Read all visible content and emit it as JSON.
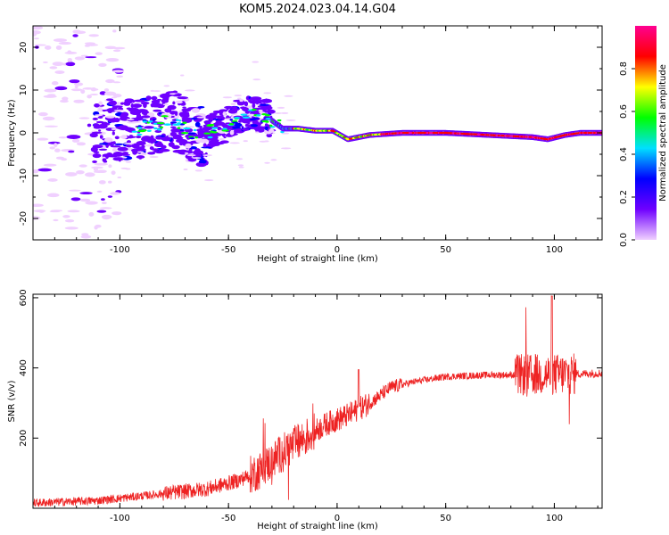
{
  "figure": {
    "title": "KOM5.2024.023.04.14.G04"
  },
  "chart_data": [
    {
      "type": "heatmap",
      "xlabel": "Height of straight line (km)",
      "ylabel": "Frequency (Hz)",
      "xlim": [
        -140,
        122
      ],
      "ylim": [
        -25,
        25
      ],
      "xticks": [
        -100,
        -50,
        0,
        50,
        100
      ],
      "yticks": [
        -20,
        -10,
        0,
        10,
        20
      ],
      "ridge": [
        {
          "x": -110,
          "y": 0
        },
        {
          "x": -90,
          "y": 1
        },
        {
          "x": -75,
          "y": 3
        },
        {
          "x": -65,
          "y": -1
        },
        {
          "x": -55,
          "y": 1
        },
        {
          "x": -40,
          "y": 5
        },
        {
          "x": -33,
          "y": 4
        },
        {
          "x": -25,
          "y": 1
        },
        {
          "x": -18,
          "y": 1
        },
        {
          "x": -10,
          "y": 0.5
        },
        {
          "x": -2,
          "y": 0.5
        },
        {
          "x": 5,
          "y": -1.5
        },
        {
          "x": 15,
          "y": -0.5
        },
        {
          "x": 30,
          "y": 0
        },
        {
          "x": 50,
          "y": 0
        },
        {
          "x": 70,
          "y": -0.5
        },
        {
          "x": 90,
          "y": -1
        },
        {
          "x": 97,
          "y": -1.5
        },
        {
          "x": 105,
          "y": -0.5
        },
        {
          "x": 112,
          "y": 0
        },
        {
          "x": 122,
          "y": 0
        }
      ],
      "colorbar": {
        "label": "Normalized spectral amplitude",
        "ticks": [
          "0.0",
          "0.2",
          "0.4",
          "0.6",
          "0.8"
        ],
        "range": [
          0,
          1
        ],
        "colormap": [
          "#f0d0ff",
          "#6f00ff",
          "#0000ff",
          "#00e0ff",
          "#00ff00",
          "#ffff00",
          "#ff0000",
          "#ff0090"
        ]
      }
    },
    {
      "type": "line",
      "xlabel": "Height of straight line (km)",
      "ylabel": "SNR (v/v)",
      "xlim": [
        -140,
        122
      ],
      "ylim": [
        0,
        610
      ],
      "xticks": [
        -100,
        -50,
        0,
        50,
        100
      ],
      "yticks": [
        200,
        400,
        600
      ],
      "color": "#ee2222",
      "trend": [
        {
          "x": -140,
          "y": 15
        },
        {
          "x": -110,
          "y": 22
        },
        {
          "x": -90,
          "y": 35
        },
        {
          "x": -75,
          "y": 45
        },
        {
          "x": -60,
          "y": 55
        },
        {
          "x": -45,
          "y": 80
        },
        {
          "x": -35,
          "y": 110
        },
        {
          "x": -25,
          "y": 160
        },
        {
          "x": -15,
          "y": 200
        },
        {
          "x": -5,
          "y": 240
        },
        {
          "x": 5,
          "y": 265
        },
        {
          "x": 15,
          "y": 300
        },
        {
          "x": 25,
          "y": 345
        },
        {
          "x": 35,
          "y": 360
        },
        {
          "x": 50,
          "y": 375
        },
        {
          "x": 70,
          "y": 380
        },
        {
          "x": 90,
          "y": 380
        },
        {
          "x": 110,
          "y": 383
        },
        {
          "x": 122,
          "y": 385
        }
      ]
    }
  ]
}
